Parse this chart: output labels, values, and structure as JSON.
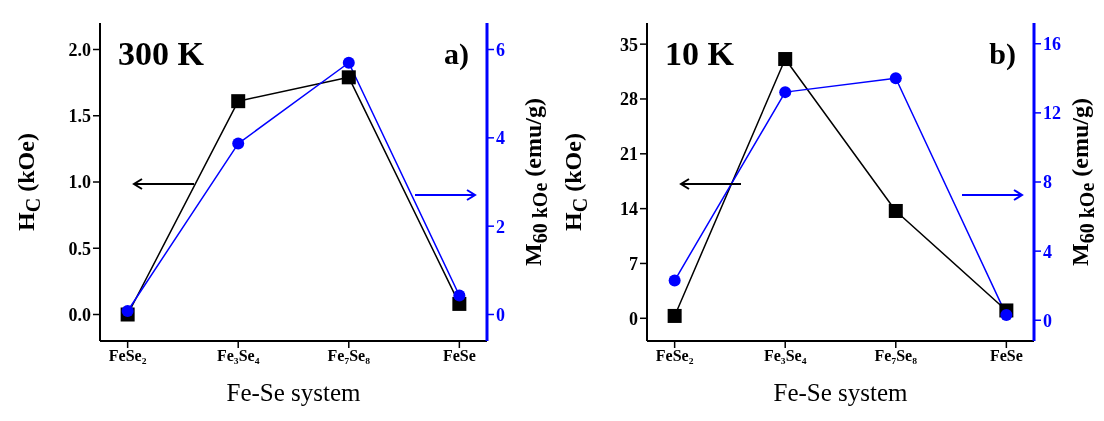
{
  "chart_data": [
    {
      "type": "line",
      "categories": [
        "FeSe₂",
        "Fe₃Se₄",
        "Fe₇Se₈",
        "FeSe"
      ],
      "xlabel": "Fe-Se system",
      "ylabel": "H$_{C}$ (kOe)",
      "y2label": "M$_{60 kOe}$ (emu/g)",
      "annotations": [
        "300 K",
        "a)"
      ],
      "series": [
        {
          "color": "#000000",
          "marker": "square",
          "values": [
            0.0,
            1.61,
            1.79,
            0.08
          ]
        },
        {
          "color": "#0000ff",
          "marker": "circle",
          "axis": "y2",
          "values": [
            0.08,
            3.87,
            5.7,
            0.43
          ]
        }
      ],
      "ylim": [
        -0.2,
        2.2
      ],
      "yticks": [
        {
          "value": 0,
          "label": "0.0"
        },
        {
          "value": 0.5,
          "label": "0.5"
        },
        {
          "value": 1,
          "label": "1.0"
        },
        {
          "value": 1.5,
          "label": "1.5"
        },
        {
          "value": 2,
          "label": "2.0"
        }
      ],
      "y2lim": [
        -0.6,
        6.6
      ],
      "y2ticks": [
        0,
        2,
        4,
        6
      ],
      "grid": false,
      "legend": false
    },
    {
      "type": "line",
      "categories": [
        "FeSe₂",
        "Fe₃Se₄",
        "Fe₇Se₈",
        "FeSe"
      ],
      "xlabel": "Fe-Se system",
      "ylabel": "H$_{C}$ (kOe)",
      "y2label": "M$_{60 kOe}$ (emu/g)",
      "annotations": [
        "10 K",
        "b)"
      ],
      "series": [
        {
          "color": "#000000",
          "marker": "square",
          "values": [
            0.3,
            33.1,
            13.7,
            1.0
          ]
        },
        {
          "color": "#0000ff",
          "marker": "circle",
          "axis": "y2",
          "values": [
            2.3,
            13.2,
            14.0,
            0.3
          ]
        }
      ],
      "ylim": [
        -2.9,
        37.7
      ],
      "yticks": [
        0,
        7,
        14,
        21,
        28,
        35
      ],
      "y2lim": [
        -1.2,
        17.2
      ],
      "y2ticks": [
        0,
        4,
        8,
        12,
        16
      ],
      "grid": false,
      "legend": false
    }
  ]
}
